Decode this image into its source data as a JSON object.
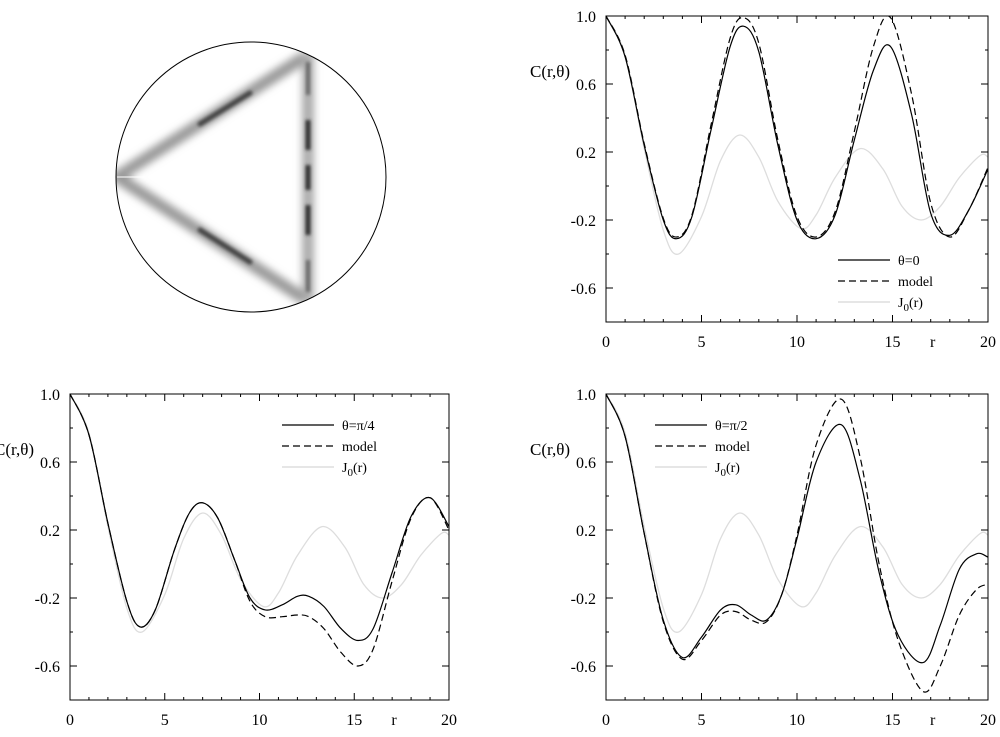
{
  "diagram": {
    "description_icon": "circular-billiard-triangle-orbit"
  },
  "chart_data": [
    {
      "type": "line",
      "panel": "top-right",
      "title": "",
      "ylabel": "C(r,θ)",
      "xlabel": "r",
      "xlim": [
        0,
        20
      ],
      "ylim": [
        -0.8,
        1.0
      ],
      "xticks": [
        0,
        5,
        10,
        15,
        20
      ],
      "yticks": [
        1.0,
        0.6,
        0.2,
        -0.2,
        -0.6
      ],
      "xtick_labels": [
        "0",
        "5",
        "10",
        "15",
        "20"
      ],
      "ytick_labels": [
        "1.0",
        "0.6",
        "0.2",
        "-0.2",
        "-0.6"
      ],
      "legend_position": "bottom-right",
      "series": [
        {
          "name": "θ=0",
          "style": "solid",
          "color": "#000000",
          "x": [
            0,
            1,
            2,
            3,
            3.7,
            4.5,
            5.5,
            6.5,
            7.2,
            8,
            9,
            10,
            11,
            12,
            13,
            14,
            14.9,
            16,
            17,
            18,
            19,
            20
          ],
          "y": [
            1.0,
            0.76,
            0.24,
            -0.2,
            -0.31,
            -0.18,
            0.33,
            0.82,
            0.94,
            0.79,
            0.24,
            -0.2,
            -0.31,
            -0.17,
            0.27,
            0.68,
            0.82,
            0.42,
            -0.16,
            -0.29,
            -0.14,
            0.1
          ]
        },
        {
          "name": "model",
          "style": "dashed",
          "color": "#000000",
          "x": [
            0,
            1,
            2,
            3,
            3.7,
            4.5,
            5.5,
            6.5,
            7.2,
            8,
            9,
            10,
            11,
            12,
            13,
            14,
            14.9,
            16,
            17,
            18,
            19,
            20
          ],
          "y": [
            1.0,
            0.77,
            0.25,
            -0.19,
            -0.3,
            -0.17,
            0.36,
            0.87,
            0.99,
            0.84,
            0.27,
            -0.18,
            -0.3,
            -0.15,
            0.32,
            0.82,
            0.99,
            0.54,
            -0.1,
            -0.3,
            -0.14,
            0.11
          ]
        },
        {
          "name": "J0(r)",
          "style": "solid",
          "color": "#dddddd",
          "x": [
            0,
            1,
            2,
            3,
            3.8,
            5,
            6,
            7,
            8,
            9,
            10.2,
            11,
            12,
            13.3,
            14.5,
            15.5,
            16.5,
            17.5,
            18.5,
            19.6,
            20
          ],
          "y": [
            1.0,
            0.77,
            0.22,
            -0.26,
            -0.4,
            -0.18,
            0.15,
            0.3,
            0.17,
            -0.09,
            -0.25,
            -0.17,
            0.05,
            0.22,
            0.1,
            -0.12,
            -0.2,
            -0.12,
            0.05,
            0.18,
            0.17
          ]
        }
      ]
    },
    {
      "type": "line",
      "panel": "bottom-left",
      "title": "",
      "ylabel": "C(r,θ)",
      "xlabel": "r",
      "xlim": [
        0,
        20
      ],
      "ylim": [
        -0.8,
        1.0
      ],
      "xticks": [
        0,
        5,
        10,
        15,
        20
      ],
      "yticks": [
        1.0,
        0.6,
        0.2,
        -0.2,
        -0.6
      ],
      "xtick_labels": [
        "0",
        "5",
        "10",
        "15",
        "20"
      ],
      "ytick_labels": [
        "1.0",
        "0.6",
        "0.2",
        "-0.2",
        "-0.6"
      ],
      "legend_position": "top-right",
      "series": [
        {
          "name": "θ=π/4",
          "style": "solid",
          "color": "#000000",
          "x": [
            0,
            1,
            2,
            3,
            3.7,
            4.5,
            5.5,
            6.3,
            7,
            7.8,
            8.7,
            9.5,
            10.3,
            11.2,
            12,
            12.6,
            13.4,
            14.3,
            15.2,
            16,
            17,
            18,
            19,
            20
          ],
          "y": [
            1.0,
            0.76,
            0.24,
            -0.22,
            -0.37,
            -0.27,
            0.08,
            0.3,
            0.36,
            0.27,
            0.02,
            -0.2,
            -0.27,
            -0.24,
            -0.19,
            -0.19,
            -0.25,
            -0.38,
            -0.45,
            -0.38,
            -0.05,
            0.28,
            0.39,
            0.22
          ]
        },
        {
          "name": "model",
          "style": "dashed",
          "color": "#000000",
          "x": [
            0,
            1,
            2,
            3,
            3.7,
            4.5,
            5.5,
            6.3,
            7,
            7.8,
            8.7,
            9.5,
            10.3,
            11.2,
            12,
            12.6,
            13.4,
            14.3,
            15.2,
            16,
            17,
            18,
            19,
            20
          ],
          "y": [
            1.0,
            0.76,
            0.24,
            -0.22,
            -0.37,
            -0.27,
            0.08,
            0.3,
            0.36,
            0.27,
            0.02,
            -0.22,
            -0.31,
            -0.31,
            -0.3,
            -0.31,
            -0.38,
            -0.52,
            -0.6,
            -0.5,
            -0.1,
            0.27,
            0.39,
            0.2
          ]
        },
        {
          "name": "J0(r)",
          "style": "solid",
          "color": "#dddddd",
          "x": [
            0,
            1,
            2,
            3,
            3.8,
            5,
            6,
            7,
            8,
            9,
            10.2,
            11,
            12,
            13.3,
            14.5,
            15.5,
            16.5,
            17.5,
            18.5,
            19.6,
            20
          ],
          "y": [
            1.0,
            0.77,
            0.22,
            -0.26,
            -0.4,
            -0.18,
            0.15,
            0.3,
            0.17,
            -0.09,
            -0.25,
            -0.17,
            0.05,
            0.22,
            0.1,
            -0.12,
            -0.2,
            -0.12,
            0.05,
            0.18,
            0.17
          ]
        }
      ]
    },
    {
      "type": "line",
      "panel": "bottom-right",
      "title": "",
      "ylabel": "C(r,θ)",
      "xlabel": "r",
      "xlim": [
        0,
        20
      ],
      "ylim": [
        -0.8,
        1.0
      ],
      "xticks": [
        0,
        5,
        10,
        15,
        20
      ],
      "yticks": [
        1.0,
        0.6,
        0.2,
        -0.2,
        -0.6
      ],
      "xtick_labels": [
        "0",
        "5",
        "10",
        "15",
        "20"
      ],
      "ytick_labels": [
        "1.0",
        "0.6",
        "0.2",
        "-0.2",
        "-0.6"
      ],
      "legend_position": "top-left",
      "series": [
        {
          "name": "θ=π/2",
          "style": "solid",
          "color": "#000000",
          "x": [
            0,
            1,
            2,
            3,
            4,
            5,
            6,
            6.8,
            7.6,
            8.4,
            9.2,
            10,
            11,
            12.3,
            13.3,
            14.3,
            15.3,
            16.6,
            17.5,
            18.5,
            19.4,
            20
          ],
          "y": [
            1.0,
            0.75,
            0.18,
            -0.33,
            -0.55,
            -0.43,
            -0.27,
            -0.24,
            -0.3,
            -0.33,
            -0.18,
            0.15,
            0.6,
            0.82,
            0.5,
            -0.05,
            -0.42,
            -0.58,
            -0.36,
            -0.03,
            0.06,
            0.04
          ]
        },
        {
          "name": "model",
          "style": "dashed",
          "color": "#000000",
          "x": [
            0,
            1,
            2,
            3,
            4,
            5,
            6,
            6.8,
            7.6,
            8.4,
            9.2,
            10,
            11,
            12.3,
            13.3,
            14.3,
            15.3,
            16.6,
            17.5,
            18.5,
            19.4,
            20
          ],
          "y": [
            1.0,
            0.75,
            0.18,
            -0.34,
            -0.56,
            -0.45,
            -0.3,
            -0.28,
            -0.33,
            -0.34,
            -0.18,
            0.17,
            0.7,
            0.97,
            0.63,
            0.0,
            -0.45,
            -0.75,
            -0.6,
            -0.3,
            -0.15,
            -0.12
          ]
        },
        {
          "name": "J0(r)",
          "style": "solid",
          "color": "#dddddd",
          "x": [
            0,
            1,
            2,
            3,
            3.8,
            5,
            6,
            7,
            8,
            9,
            10.2,
            11,
            12,
            13.3,
            14.5,
            15.5,
            16.5,
            17.5,
            18.5,
            19.6,
            20
          ],
          "y": [
            1.0,
            0.77,
            0.22,
            -0.26,
            -0.4,
            -0.18,
            0.15,
            0.3,
            0.17,
            -0.09,
            -0.25,
            -0.17,
            0.05,
            0.22,
            0.1,
            -0.12,
            -0.2,
            -0.12,
            0.05,
            0.18,
            0.17
          ]
        }
      ]
    }
  ],
  "legends": [
    {
      "labels": [
        "θ=0",
        "model",
        "J"
      ],
      "sub": "0",
      "arg": "(r)"
    },
    {
      "labels": [
        "θ=π/4",
        "model",
        "J"
      ],
      "sub": "0",
      "arg": "(r)"
    },
    {
      "labels": [
        "θ=π/2",
        "model",
        "J"
      ],
      "sub": "0",
      "arg": "(r)"
    }
  ]
}
